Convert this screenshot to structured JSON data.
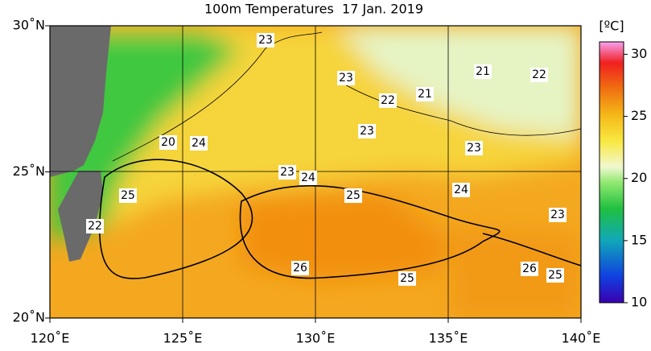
{
  "map": {
    "title": "100m Temperatures  17 Jan. 2019",
    "lon_ticks": [
      {
        "value": 120,
        "label": "120˚E"
      },
      {
        "value": 125,
        "label": "125˚E"
      },
      {
        "value": 130,
        "label": "130˚E"
      },
      {
        "value": 135,
        "label": "135˚E"
      },
      {
        "value": 140,
        "label": "140˚E"
      }
    ],
    "lat_ticks": [
      {
        "value": 20,
        "label": "20˚N"
      },
      {
        "value": 25,
        "label": "25˚N"
      },
      {
        "value": 30,
        "label": "30˚N"
      }
    ],
    "lonlim": [
      120,
      140
    ],
    "latlim": [
      20,
      30
    ],
    "colorbar": {
      "unit": "[ºC]",
      "lim": [
        10,
        31
      ],
      "ticks": [
        10,
        15,
        20,
        25,
        30
      ]
    },
    "contour_labels": [
      "23",
      "23",
      "22",
      "21",
      "21",
      "22",
      "20",
      "24",
      "23",
      "23",
      "23",
      "24",
      "25",
      "24",
      "25",
      "22",
      "23",
      "26",
      "25",
      "26",
      "25"
    ]
  }
}
